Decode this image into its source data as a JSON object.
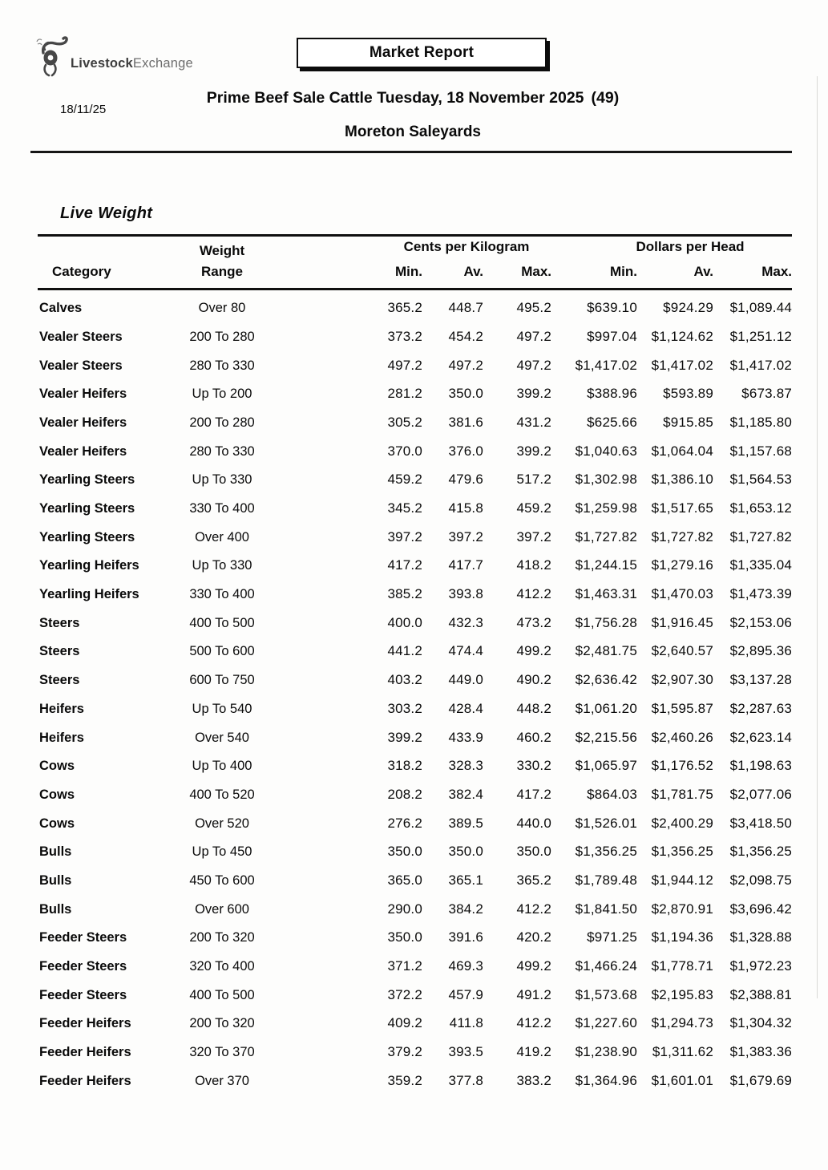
{
  "page": {
    "logo": {
      "brand_bold": "Livestock",
      "brand_light": "Exchange"
    },
    "report_box_label": "Market Report",
    "date": "18/11/25",
    "title": "Prime Beef Sale Cattle Tuesday, 18 November 2025",
    "title_count": "(49)",
    "subtitle": "Moreton Saleyards"
  },
  "section": {
    "heading": "Live Weight"
  },
  "table": {
    "group_headers": {
      "cents": "Cents per Kilogram",
      "dollars": "Dollars per Head"
    },
    "columns": {
      "category": "Category",
      "weight_line1": "Weight",
      "weight_line2": "Range",
      "min": "Min.",
      "av": "Av.",
      "max": "Max."
    },
    "rows": [
      {
        "category": "Calves",
        "range": "Over 80",
        "cpk_min": "365.2",
        "cpk_av": "448.7",
        "cpk_max": "495.2",
        "dph_min": "$639.10",
        "dph_av": "$924.29",
        "dph_max": "$1,089.44"
      },
      {
        "category": "Vealer Steers",
        "range": "200 To 280",
        "cpk_min": "373.2",
        "cpk_av": "454.2",
        "cpk_max": "497.2",
        "dph_min": "$997.04",
        "dph_av": "$1,124.62",
        "dph_max": "$1,251.12"
      },
      {
        "category": "Vealer Steers",
        "range": "280 To 330",
        "cpk_min": "497.2",
        "cpk_av": "497.2",
        "cpk_max": "497.2",
        "dph_min": "$1,417.02",
        "dph_av": "$1,417.02",
        "dph_max": "$1,417.02"
      },
      {
        "category": "Vealer Heifers",
        "range": "Up To 200",
        "cpk_min": "281.2",
        "cpk_av": "350.0",
        "cpk_max": "399.2",
        "dph_min": "$388.96",
        "dph_av": "$593.89",
        "dph_max": "$673.87"
      },
      {
        "category": "Vealer Heifers",
        "range": "200 To 280",
        "cpk_min": "305.2",
        "cpk_av": "381.6",
        "cpk_max": "431.2",
        "dph_min": "$625.66",
        "dph_av": "$915.85",
        "dph_max": "$1,185.80"
      },
      {
        "category": "Vealer Heifers",
        "range": "280 To 330",
        "cpk_min": "370.0",
        "cpk_av": "376.0",
        "cpk_max": "399.2",
        "dph_min": "$1,040.63",
        "dph_av": "$1,064.04",
        "dph_max": "$1,157.68"
      },
      {
        "category": "Yearling Steers",
        "range": "Up To 330",
        "cpk_min": "459.2",
        "cpk_av": "479.6",
        "cpk_max": "517.2",
        "dph_min": "$1,302.98",
        "dph_av": "$1,386.10",
        "dph_max": "$1,564.53"
      },
      {
        "category": "Yearling Steers",
        "range": "330 To 400",
        "cpk_min": "345.2",
        "cpk_av": "415.8",
        "cpk_max": "459.2",
        "dph_min": "$1,259.98",
        "dph_av": "$1,517.65",
        "dph_max": "$1,653.12"
      },
      {
        "category": "Yearling Steers",
        "range": "Over 400",
        "cpk_min": "397.2",
        "cpk_av": "397.2",
        "cpk_max": "397.2",
        "dph_min": "$1,727.82",
        "dph_av": "$1,727.82",
        "dph_max": "$1,727.82"
      },
      {
        "category": "Yearling Heifers",
        "range": "Up To 330",
        "cpk_min": "417.2",
        "cpk_av": "417.7",
        "cpk_max": "418.2",
        "dph_min": "$1,244.15",
        "dph_av": "$1,279.16",
        "dph_max": "$1,335.04"
      },
      {
        "category": "Yearling Heifers",
        "range": "330 To 400",
        "cpk_min": "385.2",
        "cpk_av": "393.8",
        "cpk_max": "412.2",
        "dph_min": "$1,463.31",
        "dph_av": "$1,470.03",
        "dph_max": "$1,473.39"
      },
      {
        "category": "Steers",
        "range": "400 To 500",
        "cpk_min": "400.0",
        "cpk_av": "432.3",
        "cpk_max": "473.2",
        "dph_min": "$1,756.28",
        "dph_av": "$1,916.45",
        "dph_max": "$2,153.06"
      },
      {
        "category": "Steers",
        "range": "500 To 600",
        "cpk_min": "441.2",
        "cpk_av": "474.4",
        "cpk_max": "499.2",
        "dph_min": "$2,481.75",
        "dph_av": "$2,640.57",
        "dph_max": "$2,895.36"
      },
      {
        "category": "Steers",
        "range": "600 To 750",
        "cpk_min": "403.2",
        "cpk_av": "449.0",
        "cpk_max": "490.2",
        "dph_min": "$2,636.42",
        "dph_av": "$2,907.30",
        "dph_max": "$3,137.28"
      },
      {
        "category": "Heifers",
        "range": "Up To 540",
        "cpk_min": "303.2",
        "cpk_av": "428.4",
        "cpk_max": "448.2",
        "dph_min": "$1,061.20",
        "dph_av": "$1,595.87",
        "dph_max": "$2,287.63"
      },
      {
        "category": "Heifers",
        "range": "Over 540",
        "cpk_min": "399.2",
        "cpk_av": "433.9",
        "cpk_max": "460.2",
        "dph_min": "$2,215.56",
        "dph_av": "$2,460.26",
        "dph_max": "$2,623.14"
      },
      {
        "category": "Cows",
        "range": "Up To 400",
        "cpk_min": "318.2",
        "cpk_av": "328.3",
        "cpk_max": "330.2",
        "dph_min": "$1,065.97",
        "dph_av": "$1,176.52",
        "dph_max": "$1,198.63"
      },
      {
        "category": "Cows",
        "range": "400 To 520",
        "cpk_min": "208.2",
        "cpk_av": "382.4",
        "cpk_max": "417.2",
        "dph_min": "$864.03",
        "dph_av": "$1,781.75",
        "dph_max": "$2,077.06"
      },
      {
        "category": "Cows",
        "range": "Over 520",
        "cpk_min": "276.2",
        "cpk_av": "389.5",
        "cpk_max": "440.0",
        "dph_min": "$1,526.01",
        "dph_av": "$2,400.29",
        "dph_max": "$3,418.50"
      },
      {
        "category": "Bulls",
        "range": "Up To 450",
        "cpk_min": "350.0",
        "cpk_av": "350.0",
        "cpk_max": "350.0",
        "dph_min": "$1,356.25",
        "dph_av": "$1,356.25",
        "dph_max": "$1,356.25"
      },
      {
        "category": "Bulls",
        "range": "450 To 600",
        "cpk_min": "365.0",
        "cpk_av": "365.1",
        "cpk_max": "365.2",
        "dph_min": "$1,789.48",
        "dph_av": "$1,944.12",
        "dph_max": "$2,098.75"
      },
      {
        "category": "Bulls",
        "range": "Over 600",
        "cpk_min": "290.0",
        "cpk_av": "384.2",
        "cpk_max": "412.2",
        "dph_min": "$1,841.50",
        "dph_av": "$2,870.91",
        "dph_max": "$3,696.42"
      },
      {
        "category": "Feeder Steers",
        "range": "200 To 320",
        "cpk_min": "350.0",
        "cpk_av": "391.6",
        "cpk_max": "420.2",
        "dph_min": "$971.25",
        "dph_av": "$1,194.36",
        "dph_max": "$1,328.88"
      },
      {
        "category": "Feeder Steers",
        "range": "320 To 400",
        "cpk_min": "371.2",
        "cpk_av": "469.3",
        "cpk_max": "499.2",
        "dph_min": "$1,466.24",
        "dph_av": "$1,778.71",
        "dph_max": "$1,972.23"
      },
      {
        "category": "Feeder Steers",
        "range": "400 To 500",
        "cpk_min": "372.2",
        "cpk_av": "457.9",
        "cpk_max": "491.2",
        "dph_min": "$1,573.68",
        "dph_av": "$2,195.83",
        "dph_max": "$2,388.81"
      },
      {
        "category": "Feeder Heifers",
        "range": "200 To 320",
        "cpk_min": "409.2",
        "cpk_av": "411.8",
        "cpk_max": "412.2",
        "dph_min": "$1,227.60",
        "dph_av": "$1,294.73",
        "dph_max": "$1,304.32"
      },
      {
        "category": "Feeder Heifers",
        "range": "320 To 370",
        "cpk_min": "379.2",
        "cpk_av": "393.5",
        "cpk_max": "419.2",
        "dph_min": "$1,238.90",
        "dph_av": "$1,311.62",
        "dph_max": "$1,383.36"
      },
      {
        "category": "Feeder Heifers",
        "range": "Over 370",
        "cpk_min": "359.2",
        "cpk_av": "377.8",
        "cpk_max": "383.2",
        "dph_min": "$1,364.96",
        "dph_av": "$1,601.01",
        "dph_max": "$1,679.69"
      }
    ]
  },
  "colors": {
    "text": "#0a0a0a",
    "logo_gray": "#4a4a4a",
    "rule": "#101010"
  }
}
